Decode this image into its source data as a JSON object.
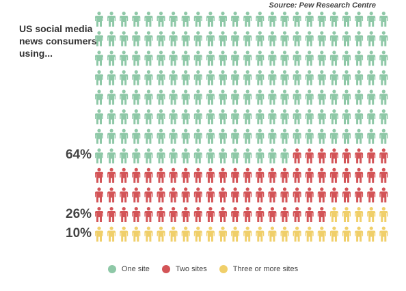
{
  "source": "Source: Pew Research Centre",
  "title": "US social media news consumers using...",
  "chart_data": {
    "type": "pictogram",
    "rows": 12,
    "columns": 24,
    "series": [
      {
        "name": "One site",
        "percent": 64,
        "label": "64%",
        "color": "#8ec8a7"
      },
      {
        "name": "Two sites",
        "percent": 26,
        "label": "26%",
        "color": "#d35457"
      },
      {
        "name": "Three or more sites",
        "percent": 10,
        "label": "10%",
        "color": "#f0cf6a"
      }
    ],
    "legend_position": "bottom"
  }
}
